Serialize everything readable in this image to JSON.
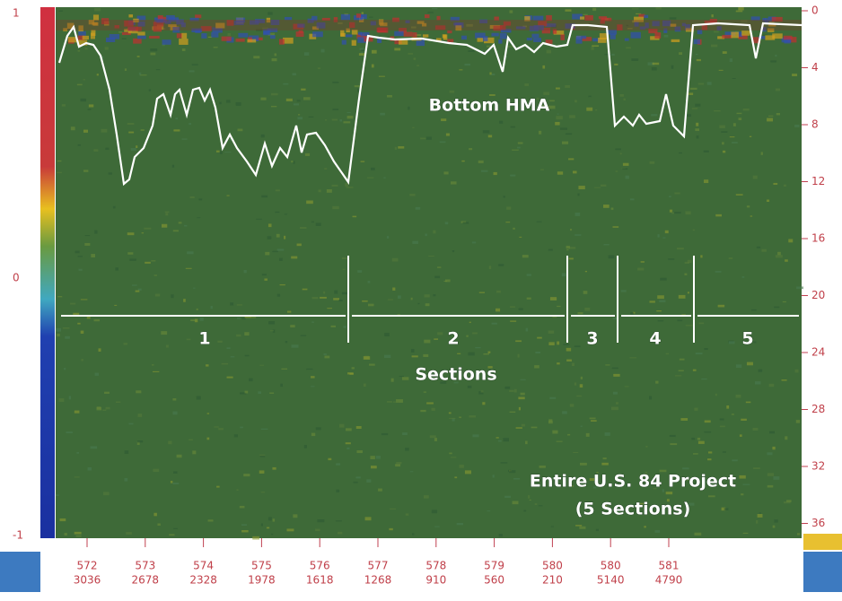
{
  "annotations": {
    "layer": "Bottom HMA",
    "sections_label": "Sections",
    "project_line1": "Entire U.S. 84 Project",
    "project_line2": "(5 Sections)"
  },
  "sections": [
    "1",
    "2",
    "3",
    "4",
    "5"
  ],
  "depth_ticks": [
    "0",
    "4",
    "8",
    "12",
    "16",
    "20",
    "24",
    "28",
    "32",
    "36"
  ],
  "scale_ticks": [
    "1",
    "0",
    "-1"
  ],
  "distance_ticks": [
    [
      "572",
      "3036"
    ],
    [
      "573",
      "2678"
    ],
    [
      "574",
      "2328"
    ],
    [
      "575",
      "1978"
    ],
    [
      "576",
      "1618"
    ],
    [
      "577",
      "1268"
    ],
    [
      "578",
      "910"
    ],
    [
      "579",
      "560"
    ],
    [
      "580",
      "210"
    ],
    [
      "580",
      "5140"
    ],
    [
      "581",
      "4790"
    ]
  ]
}
